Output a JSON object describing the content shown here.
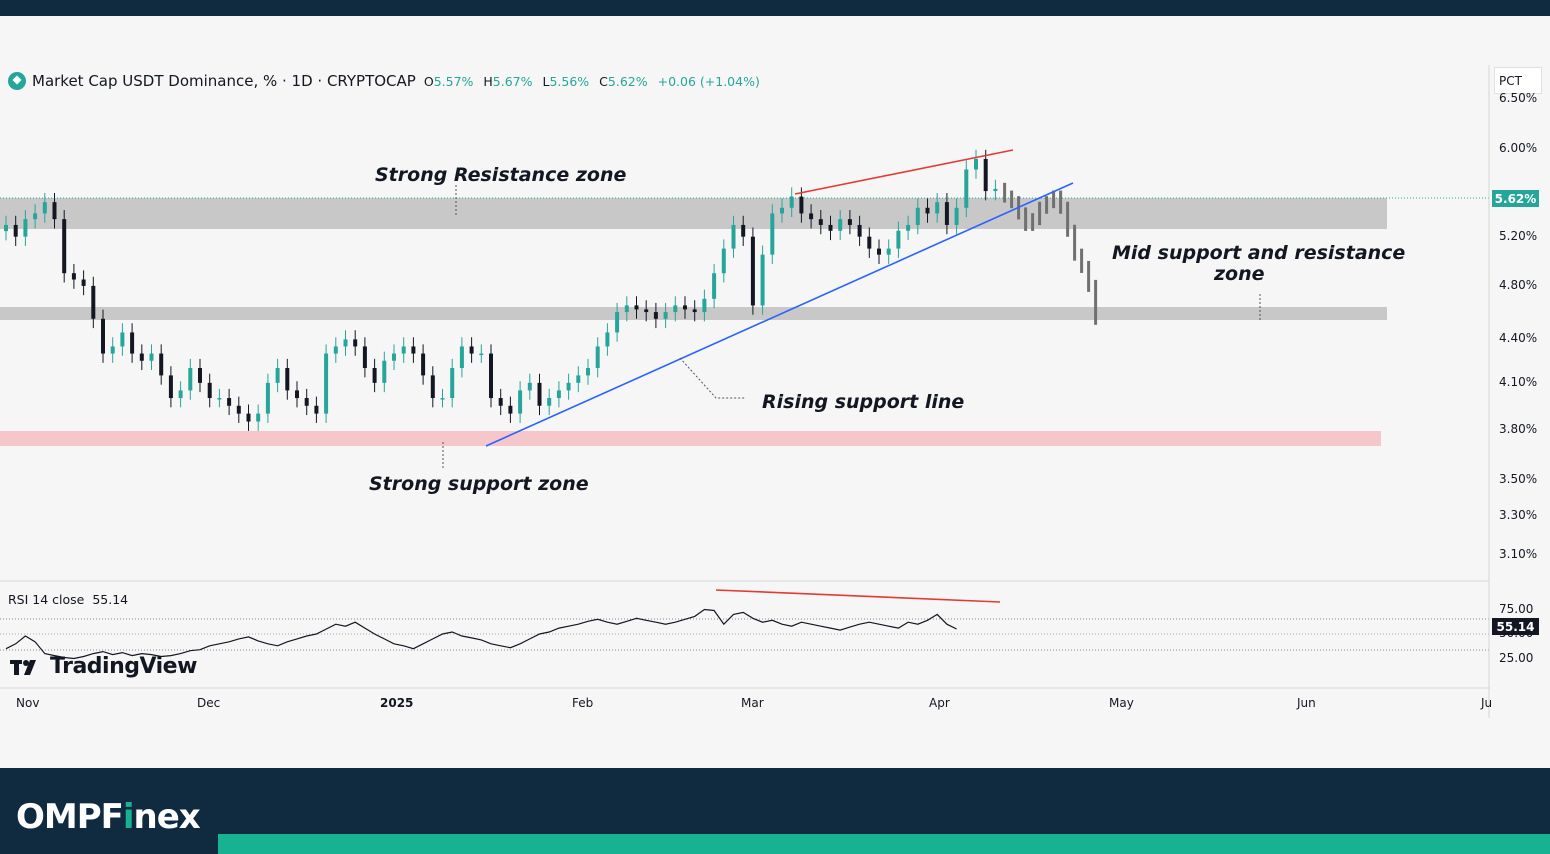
{
  "legend": {
    "symbol": "Market Cap USDT Dominance, % · 1D · CRYPTOCAP",
    "open_key": "O",
    "open": "5.57%",
    "high_key": "H",
    "high": "5.67%",
    "low_key": "L",
    "low": "5.56%",
    "close_key": "C",
    "close": "5.62%",
    "change": "+0.06 (+1.04%)"
  },
  "rsi_legend": "RSI 14 close",
  "rsi_value": "55.14",
  "price_scale": {
    "unit": "PCT",
    "current": "5.62%",
    "ticks": [
      "6.50%",
      "6.00%",
      "5.20%",
      "4.80%",
      "4.40%",
      "4.10%",
      "3.80%",
      "3.50%",
      "3.30%",
      "3.10%"
    ]
  },
  "rsi_scale": {
    "ticks": [
      "75.00",
      "50.00",
      "25.00"
    ]
  },
  "time_axis": [
    "Nov",
    "Dec",
    "2025",
    "Feb",
    "Mar",
    "Apr",
    "May",
    "Jun",
    "Ju"
  ],
  "annotations": {
    "resistance": "Strong Resistance zone",
    "support": "Strong support zone",
    "mid_line1": "Mid support and resistance",
    "mid_line2": "zone",
    "rising": "Rising support line"
  },
  "watermark": "TradingView",
  "brand": {
    "prefix": "OMPF",
    "i": "i",
    "suffix": "nex"
  },
  "colors": {
    "up": "#26a69a",
    "down": "#131722",
    "projection": "#707070",
    "resistance_line": "#e53935",
    "support_line": "#2962ff"
  },
  "chart_data": {
    "type": "candlestick",
    "title": "Market Cap USDT Dominance, % · 1D · CRYPTOCAP",
    "ylabel": "PCT",
    "ylim": [
      3.0,
      6.6
    ],
    "y_scale": "log",
    "last_close": 5.62,
    "zones": [
      {
        "label": "Strong Resistance zone",
        "from": 5.42,
        "to": 5.62
      },
      {
        "label": "Mid support and resistance zone",
        "from": 4.58,
        "to": 4.65
      },
      {
        "label": "Strong support zone",
        "from": 3.74,
        "to": 3.82
      }
    ],
    "close_series": [
      5.3,
      5.2,
      5.35,
      5.4,
      5.5,
      5.35,
      4.9,
      4.85,
      4.8,
      4.55,
      4.3,
      4.35,
      4.45,
      4.3,
      4.25,
      4.3,
      4.15,
      4.0,
      4.05,
      4.2,
      4.1,
      4.0,
      4.0,
      3.95,
      3.9,
      3.85,
      3.9,
      4.1,
      4.2,
      4.05,
      4.0,
      3.95,
      3.9,
      4.3,
      4.35,
      4.4,
      4.35,
      4.2,
      4.1,
      4.25,
      4.3,
      4.35,
      4.3,
      4.15,
      4.0,
      4.0,
      4.2,
      4.35,
      4.3,
      4.3,
      4.0,
      3.95,
      3.9,
      4.05,
      4.1,
      3.95,
      4.0,
      4.05,
      4.1,
      4.15,
      4.2,
      4.35,
      4.45,
      4.6,
      4.65,
      4.62,
      4.6,
      4.55,
      4.6,
      4.65,
      4.62,
      4.6,
      4.7,
      4.9,
      5.1,
      5.3,
      5.2,
      4.65,
      5.05,
      5.4,
      5.45,
      5.55,
      5.4,
      5.35,
      5.3,
      5.25,
      5.35,
      5.3,
      5.2,
      5.1,
      5.05,
      5.1,
      5.25,
      5.3,
      5.45,
      5.4,
      5.5,
      5.3,
      5.45,
      5.8,
      5.9,
      5.6,
      5.62
    ],
    "projection": [
      5.55,
      5.5,
      5.4,
      5.3,
      5.35,
      5.45,
      5.5,
      5.55,
      5.45,
      5.25,
      5.05,
      4.95,
      4.8,
      4.55
    ]
  },
  "rsi_data": {
    "ylim": [
      0,
      100
    ],
    "levels": [
      70,
      50,
      30
    ],
    "values": [
      35,
      40,
      48,
      42,
      30,
      28,
      26,
      25,
      27,
      30,
      32,
      29,
      31,
      28,
      30,
      29,
      27,
      28,
      30,
      33,
      34,
      38,
      40,
      42,
      45,
      47,
      43,
      40,
      38,
      42,
      45,
      48,
      50,
      55,
      60,
      58,
      62,
      56,
      50,
      45,
      40,
      38,
      35,
      40,
      45,
      50,
      52,
      48,
      46,
      44,
      40,
      38,
      36,
      40,
      45,
      50,
      52,
      56,
      58,
      60,
      63,
      65,
      62,
      60,
      63,
      66,
      64,
      62,
      60,
      62,
      65,
      68,
      75,
      74,
      60,
      70,
      72,
      66,
      62,
      64,
      60,
      58,
      62,
      60,
      58,
      56,
      54,
      57,
      60,
      62,
      60,
      58,
      56,
      62,
      60,
      64,
      70,
      60,
      55.14
    ]
  }
}
